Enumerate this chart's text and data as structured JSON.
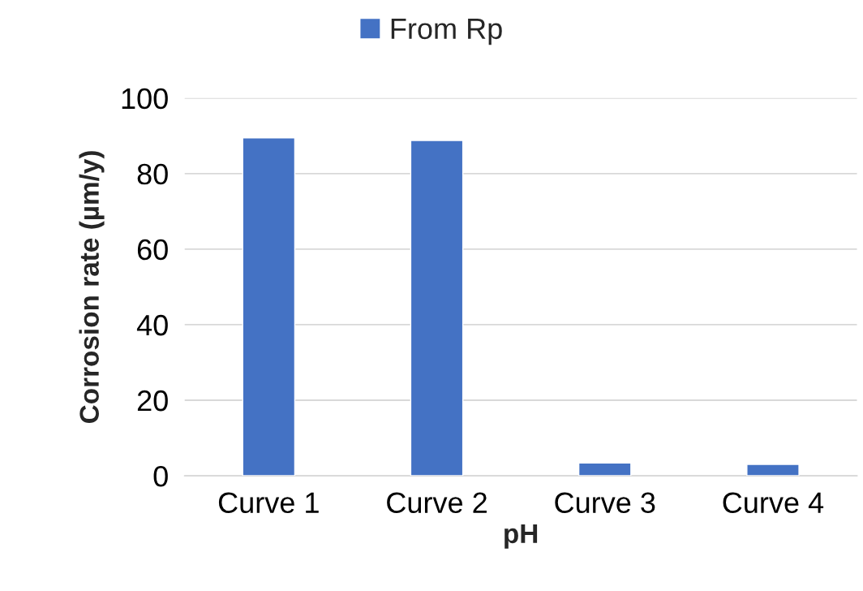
{
  "chart_data": {
    "type": "bar",
    "xlabel": "pH",
    "ylabel": "Corrosion rate (µm/y)",
    "categories": [
      "Curve 1",
      "Curve 2",
      "Curve 3",
      "Curve 4"
    ],
    "series": [
      {
        "name": "From Rp",
        "color": "#4472c4",
        "values": [
          89.5,
          88.8,
          3.4,
          3.0
        ]
      }
    ],
    "ylim": [
      0,
      100
    ],
    "yticks": [
      0,
      20,
      40,
      60,
      80,
      100
    ],
    "grid": "y",
    "legend": "top"
  }
}
